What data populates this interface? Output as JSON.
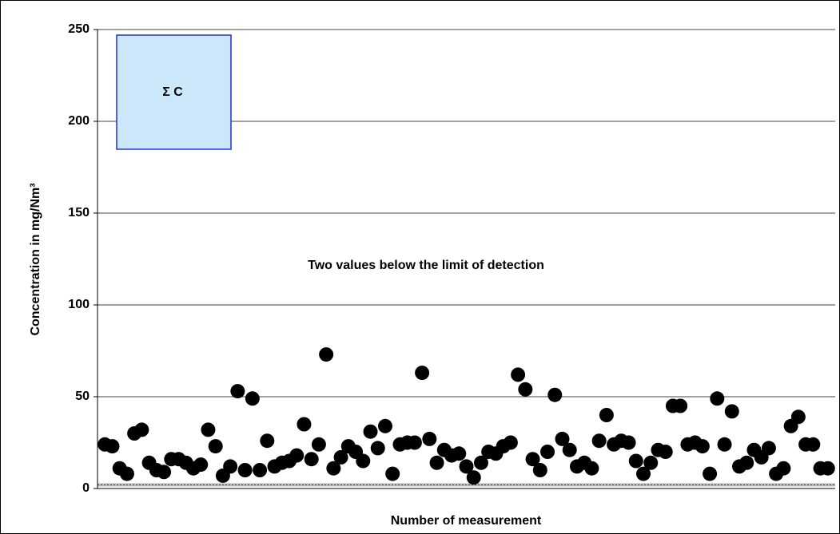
{
  "chart_data": {
    "type": "scatter",
    "x_label": "Number of measurement",
    "y_label": "Concentration in mg/Nm³",
    "annotations": [
      "Σ C",
      "Two values below the limit of detection"
    ],
    "x": [
      1,
      2,
      3,
      4,
      5,
      6,
      7,
      8,
      9,
      10,
      11,
      12,
      13,
      14,
      15,
      16,
      17,
      18,
      19,
      20,
      21,
      22,
      23,
      24,
      25,
      26,
      27,
      28,
      29,
      30,
      31,
      32,
      33,
      34,
      35,
      36,
      37,
      38,
      39,
      40,
      41,
      42,
      43,
      44,
      45,
      46,
      47,
      48,
      49,
      50,
      51,
      52,
      53,
      54,
      55,
      56,
      57,
      58,
      59,
      60,
      61,
      62,
      63,
      64,
      65,
      66,
      67,
      68,
      69,
      70,
      71,
      72,
      73,
      74,
      75,
      76,
      77,
      78,
      79,
      80,
      81,
      82,
      83,
      84,
      85,
      86,
      87,
      88,
      89,
      90,
      91,
      92,
      93,
      94,
      95,
      96,
      97,
      98,
      99
    ],
    "values": [
      24,
      23,
      11,
      8,
      30,
      32,
      14,
      10,
      9,
      16,
      16,
      14,
      11,
      13,
      32,
      23,
      7,
      12,
      53,
      10,
      49,
      10,
      26,
      12,
      14,
      15,
      18,
      35,
      16,
      24,
      73,
      11,
      17,
      23,
      20,
      15,
      31,
      22,
      34,
      8,
      24,
      25,
      25,
      63,
      27,
      14,
      21,
      18,
      19,
      12,
      6,
      14,
      20,
      19,
      23,
      25,
      62,
      54,
      16,
      10,
      20,
      51,
      27,
      21,
      12,
      14,
      11,
      26,
      40,
      24,
      26,
      25,
      15,
      8,
      14,
      21,
      20,
      45,
      45,
      24,
      25,
      23,
      8,
      49,
      24,
      42,
      12,
      14,
      21,
      17,
      22,
      8,
      11,
      34,
      39,
      24,
      24,
      11,
      11
    ],
    "color": "#000000",
    "detection_limit_line": 2,
    "xlim": [
      0,
      100
    ],
    "ylim": [
      0,
      250
    ],
    "yticks": [
      0,
      50,
      100,
      150,
      200,
      250
    ],
    "grid": true
  }
}
